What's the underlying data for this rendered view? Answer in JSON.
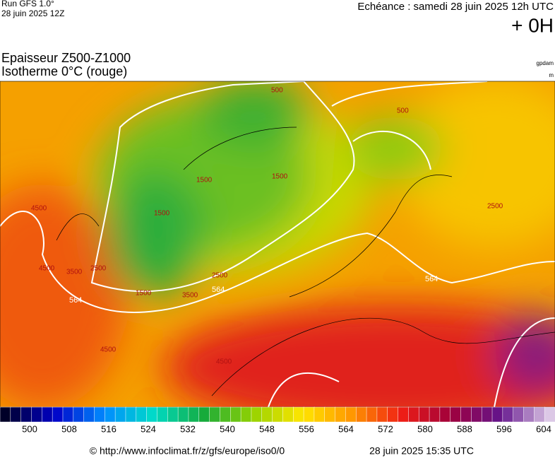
{
  "header": {
    "run": "Run GFS 1.0°",
    "date": "28 juin 2025 12Z",
    "echeance": "Echéance : samedi 28 juin 2025 12h UTC",
    "offset": "+ 0H"
  },
  "title": {
    "line1": "Epaisseur Z500-Z1000",
    "line2": "Isotherme 0°C (rouge)"
  },
  "units": {
    "thickness": "gpdam",
    "iso0": "m"
  },
  "map_labels": {
    "thickness": [
      "564",
      "564",
      "564"
    ],
    "iso0": [
      "1500",
      "1500",
      "1500",
      "1500",
      "2500",
      "2500",
      "2500",
      "3500",
      "3500",
      "4500",
      "4500",
      "4500",
      "4500",
      "500",
      "500"
    ]
  },
  "colorbar": {
    "labels": [
      "500",
      "508",
      "516",
      "524",
      "532",
      "540",
      "548",
      "556",
      "564",
      "572",
      "580",
      "588",
      "596",
      "604"
    ]
  },
  "footer": {
    "url": "© http://www.infoclimat.fr/z/gfs/europe/iso0/0",
    "generated": "28 juin 2025 15:35 UTC"
  }
}
